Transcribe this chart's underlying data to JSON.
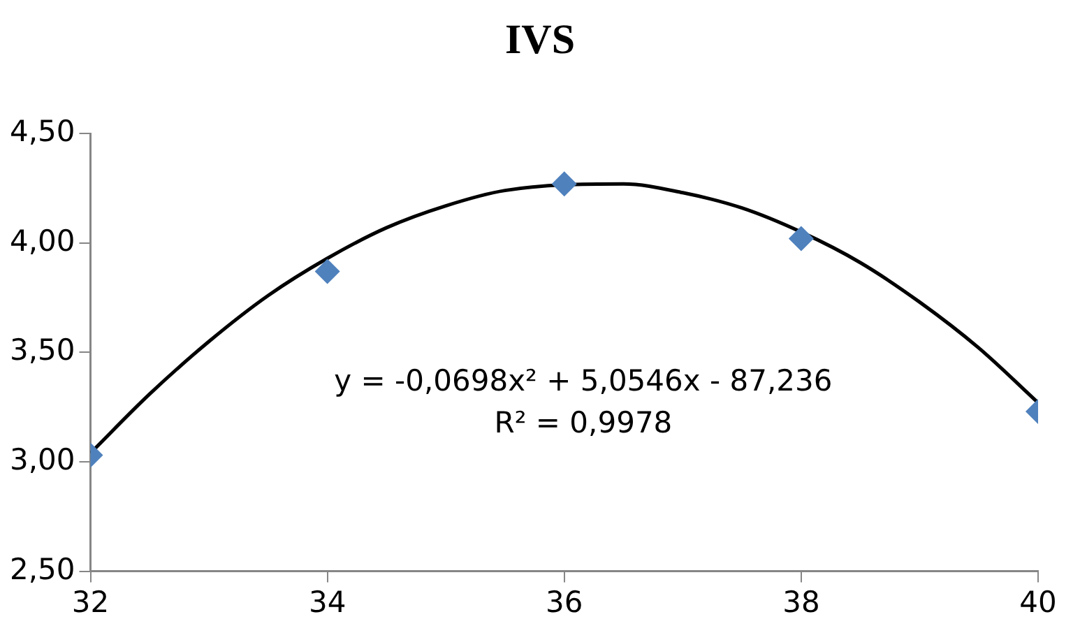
{
  "chart_data": {
    "type": "scatter",
    "title": "IVS",
    "series": [
      {
        "color": "#4f81bd",
        "marker": "diamond",
        "x": [
          32,
          34,
          36,
          38,
          40
        ],
        "values": [
          3.03,
          3.87,
          4.27,
          4.02,
          3.23
        ]
      },
      {
        "type": "line",
        "color": "#000000",
        "marker": "none",
        "line_style": "solid",
        "x": [
          32,
          32.5,
          33,
          33.5,
          34,
          34.5,
          35,
          35.5,
          36.5,
          37,
          37.5,
          38,
          38.5,
          39,
          39.5,
          40
        ],
        "values": [
          3.04,
          3.31,
          3.55,
          3.76,
          3.93,
          4.07,
          4.17,
          4.24,
          4.27,
          4.23,
          4.16,
          4.05,
          3.91,
          3.73,
          3.52,
          3.27
        ]
      }
    ],
    "xlim": [
      32,
      40
    ],
    "xticks": [
      32,
      34,
      36,
      38,
      40
    ],
    "ylim": [
      2.5,
      4.5
    ],
    "yticks": [
      {
        "value": 2.5,
        "label": "2,50"
      },
      {
        "value": 3,
        "label": "3,00"
      },
      {
        "value": 3.5,
        "label": "3,50"
      },
      {
        "value": 4,
        "label": "4,00"
      },
      {
        "value": 4.5,
        "label": "4,50"
      }
    ],
    "annotations": [
      "y = -0,0698x² + 5,0546x - 87,236",
      "R² = 0,9978"
    ],
    "grid": false,
    "legend": false
  }
}
